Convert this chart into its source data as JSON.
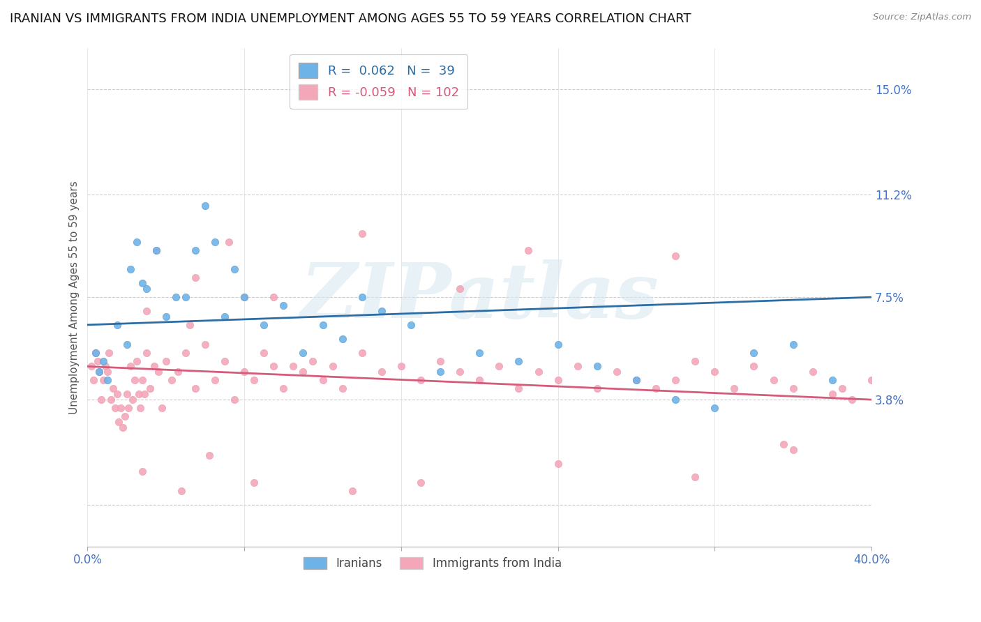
{
  "title": "IRANIAN VS IMMIGRANTS FROM INDIA UNEMPLOYMENT AMONG AGES 55 TO 59 YEARS CORRELATION CHART",
  "source": "Source: ZipAtlas.com",
  "ylabel": "Unemployment Among Ages 55 to 59 years",
  "xlim": [
    0.0,
    40.0
  ],
  "ylim": [
    -1.5,
    16.5
  ],
  "ytick_vals": [
    0.0,
    3.8,
    7.5,
    11.2,
    15.0
  ],
  "ytick_labels": [
    "",
    "3.8%",
    "7.5%",
    "11.2%",
    "15.0%"
  ],
  "xtick_vals": [
    0.0,
    8.0,
    16.0,
    24.0,
    32.0,
    40.0
  ],
  "xtick_labels": [
    "0.0%",
    "",
    "",
    "",
    "",
    "40.0%"
  ],
  "blue_R": 0.062,
  "blue_N": 39,
  "pink_R": -0.059,
  "pink_N": 102,
  "blue_color": "#6eb3e8",
  "pink_color": "#f4a7b9",
  "blue_line_color": "#2e6da4",
  "pink_line_color": "#d45b7a",
  "legend_label_blue": "Iranians",
  "legend_label_pink": "Immigrants from India",
  "watermark": "ZIPatlas",
  "title_fontsize": 13,
  "axis_label_fontsize": 11,
  "tick_label_color": "#4472c4",
  "blue_line_start_y": 6.5,
  "blue_line_end_y": 7.5,
  "pink_line_start_y": 5.0,
  "pink_line_end_y": 3.8,
  "blue_scatter_x": [
    0.4,
    0.6,
    0.8,
    1.0,
    1.5,
    2.0,
    2.2,
    2.5,
    2.8,
    3.0,
    3.5,
    4.0,
    4.5,
    5.0,
    5.5,
    6.0,
    6.5,
    7.0,
    7.5,
    8.0,
    9.0,
    10.0,
    11.0,
    12.0,
    13.0,
    14.0,
    15.0,
    16.5,
    18.0,
    20.0,
    22.0,
    24.0,
    26.0,
    28.0,
    30.0,
    32.0,
    34.0,
    36.0,
    38.0
  ],
  "blue_scatter_y": [
    5.5,
    4.8,
    5.2,
    4.5,
    6.5,
    5.8,
    8.5,
    9.5,
    8.0,
    7.8,
    9.2,
    6.8,
    7.5,
    7.5,
    9.2,
    10.8,
    9.5,
    6.8,
    8.5,
    7.5,
    6.5,
    7.2,
    5.5,
    6.5,
    6.0,
    7.5,
    7.0,
    6.5,
    4.8,
    5.5,
    5.2,
    5.8,
    5.0,
    4.5,
    3.8,
    3.5,
    5.5,
    5.8,
    4.5
  ],
  "pink_scatter_x": [
    0.2,
    0.3,
    0.4,
    0.5,
    0.6,
    0.7,
    0.8,
    0.9,
    1.0,
    1.1,
    1.2,
    1.3,
    1.4,
    1.5,
    1.6,
    1.7,
    1.8,
    1.9,
    2.0,
    2.1,
    2.2,
    2.3,
    2.4,
    2.5,
    2.6,
    2.7,
    2.8,
    2.9,
    3.0,
    3.2,
    3.4,
    3.6,
    3.8,
    4.0,
    4.3,
    4.6,
    5.0,
    5.5,
    6.0,
    6.5,
    7.0,
    7.5,
    8.0,
    8.5,
    9.0,
    9.5,
    10.0,
    10.5,
    11.0,
    11.5,
    12.0,
    12.5,
    13.0,
    14.0,
    15.0,
    16.0,
    17.0,
    18.0,
    19.0,
    20.0,
    21.0,
    22.0,
    23.0,
    24.0,
    25.0,
    26.0,
    27.0,
    28.0,
    29.0,
    30.0,
    31.0,
    32.0,
    33.0,
    34.0,
    35.0,
    36.0,
    37.0,
    38.0,
    39.0,
    40.0,
    3.5,
    5.2,
    7.2,
    9.5,
    14.0,
    19.0,
    22.5,
    30.0,
    35.5,
    38.5,
    2.8,
    4.8,
    6.2,
    8.5,
    13.5,
    17.0,
    24.0,
    31.0,
    36.0,
    3.0,
    5.5,
    8.0
  ],
  "pink_scatter_y": [
    5.0,
    4.5,
    5.5,
    5.2,
    4.8,
    3.8,
    4.5,
    5.0,
    4.8,
    5.5,
    3.8,
    4.2,
    3.5,
    4.0,
    3.0,
    3.5,
    2.8,
    3.2,
    4.0,
    3.5,
    5.0,
    3.8,
    4.5,
    5.2,
    4.0,
    3.5,
    4.5,
    4.0,
    5.5,
    4.2,
    5.0,
    4.8,
    3.5,
    5.2,
    4.5,
    4.8,
    5.5,
    4.2,
    5.8,
    4.5,
    5.2,
    3.8,
    4.8,
    4.5,
    5.5,
    5.0,
    4.2,
    5.0,
    4.8,
    5.2,
    4.5,
    5.0,
    4.2,
    5.5,
    4.8,
    5.0,
    4.5,
    5.2,
    4.8,
    4.5,
    5.0,
    4.2,
    4.8,
    4.5,
    5.0,
    4.2,
    4.8,
    4.5,
    4.2,
    4.5,
    5.2,
    4.8,
    4.2,
    5.0,
    4.5,
    4.2,
    4.8,
    4.0,
    3.8,
    4.5,
    9.2,
    6.5,
    9.5,
    7.5,
    9.8,
    7.8,
    9.2,
    9.0,
    2.2,
    4.2,
    1.2,
    0.5,
    1.8,
    0.8,
    0.5,
    0.8,
    1.5,
    1.0,
    2.0,
    7.0,
    8.2,
    7.5
  ]
}
